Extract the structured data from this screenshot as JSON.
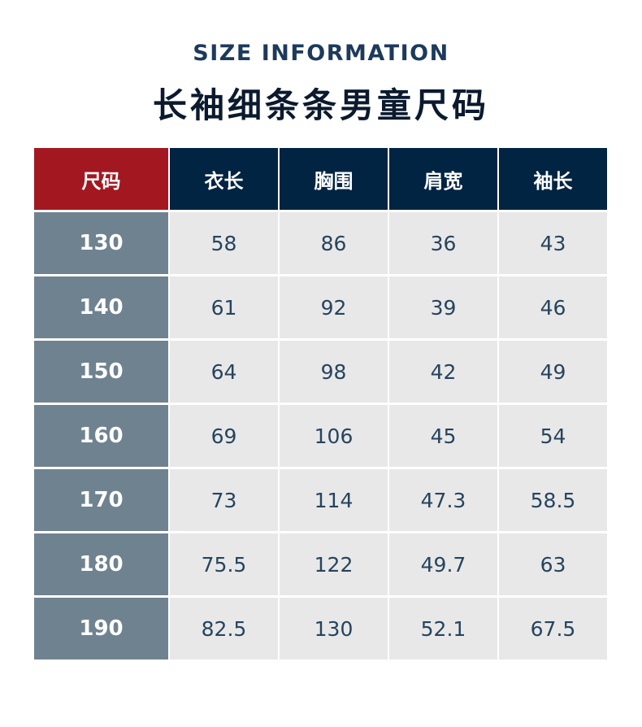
{
  "subtitle": "SIZE INFORMATION",
  "title": "长袖细条条男童尺码",
  "colors": {
    "size_header": "#a31820",
    "header": "#002442",
    "size_cell": "#6f8290",
    "cell": "#e8e8e8",
    "text": "#26445e"
  },
  "headers": [
    "尺码",
    "衣长",
    "胸围",
    "肩宽",
    "袖长"
  ],
  "rows": [
    [
      "130",
      "58",
      "86",
      "36",
      "43"
    ],
    [
      "140",
      "61",
      "92",
      "39",
      "46"
    ],
    [
      "150",
      "64",
      "98",
      "42",
      "49"
    ],
    [
      "160",
      "69",
      "106",
      "45",
      "54"
    ],
    [
      "170",
      "73",
      "114",
      "47.3",
      "58.5"
    ],
    [
      "180",
      "75.5",
      "122",
      "49.7",
      "63"
    ],
    [
      "190",
      "82.5",
      "130",
      "52.1",
      "67.5"
    ]
  ]
}
